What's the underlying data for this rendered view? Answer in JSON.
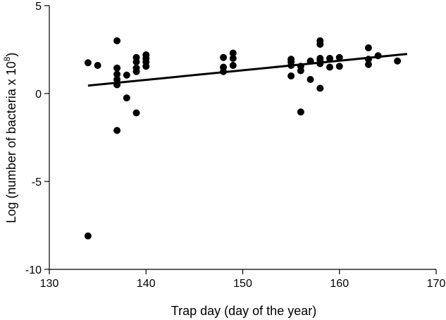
{
  "chart_data": {
    "type": "scatter",
    "title": "",
    "xlabel": "Trap day (day of the year)",
    "ylabel_prefix": "Log (number of bacteria x 10",
    "ylabel_sup": "8",
    "ylabel_suffix": ")",
    "xlim": [
      130,
      170
    ],
    "ylim": [
      -10,
      5
    ],
    "xticks": [
      130,
      140,
      150,
      160,
      170
    ],
    "yticks": [
      -10,
      -5,
      0,
      5
    ],
    "grid": false,
    "legend": "none",
    "points": [
      {
        "x": 134,
        "y": 1.75
      },
      {
        "x": 134,
        "y": -8.1
      },
      {
        "x": 135,
        "y": 1.6
      },
      {
        "x": 137,
        "y": 3.0
      },
      {
        "x": 137,
        "y": 1.45
      },
      {
        "x": 137,
        "y": 1.1
      },
      {
        "x": 137,
        "y": 0.8
      },
      {
        "x": 137,
        "y": 0.5
      },
      {
        "x": 137,
        "y": -2.1
      },
      {
        "x": 138,
        "y": 1.05
      },
      {
        "x": 138,
        "y": -0.25
      },
      {
        "x": 139,
        "y": 2.05
      },
      {
        "x": 139,
        "y": 1.8
      },
      {
        "x": 139,
        "y": 1.45
      },
      {
        "x": 139,
        "y": 1.25
      },
      {
        "x": 139,
        "y": -1.1
      },
      {
        "x": 140,
        "y": 2.2
      },
      {
        "x": 140,
        "y": 2.0
      },
      {
        "x": 140,
        "y": 1.8
      },
      {
        "x": 140,
        "y": 1.55
      },
      {
        "x": 148,
        "y": 2.05
      },
      {
        "x": 148,
        "y": 1.5
      },
      {
        "x": 148,
        "y": 1.25
      },
      {
        "x": 149,
        "y": 2.3
      },
      {
        "x": 149,
        "y": 2.0
      },
      {
        "x": 149,
        "y": 1.6
      },
      {
        "x": 155,
        "y": 1.95
      },
      {
        "x": 155,
        "y": 1.8
      },
      {
        "x": 155,
        "y": 1.6
      },
      {
        "x": 155,
        "y": 1.0
      },
      {
        "x": 156,
        "y": 1.55
      },
      {
        "x": 156,
        "y": 1.3
      },
      {
        "x": 156,
        "y": -1.05
      },
      {
        "x": 157,
        "y": 1.85
      },
      {
        "x": 157,
        "y": 0.8
      },
      {
        "x": 158,
        "y": 3.0
      },
      {
        "x": 158,
        "y": 2.8
      },
      {
        "x": 158,
        "y": 2.0
      },
      {
        "x": 158,
        "y": 1.9
      },
      {
        "x": 158,
        "y": 1.7
      },
      {
        "x": 158,
        "y": 0.3
      },
      {
        "x": 159,
        "y": 2.0
      },
      {
        "x": 159,
        "y": 1.5
      },
      {
        "x": 160,
        "y": 2.05
      },
      {
        "x": 160,
        "y": 1.55
      },
      {
        "x": 163,
        "y": 2.6
      },
      {
        "x": 163,
        "y": 1.95
      },
      {
        "x": 163,
        "y": 1.65
      },
      {
        "x": 164,
        "y": 2.15
      },
      {
        "x": 166,
        "y": 1.85
      }
    ],
    "trendline": {
      "x": [
        134,
        167
      ],
      "y": [
        0.45,
        2.25
      ]
    },
    "colors": {
      "marker": "#000000",
      "line": "#000000",
      "axis": "#000000"
    }
  }
}
